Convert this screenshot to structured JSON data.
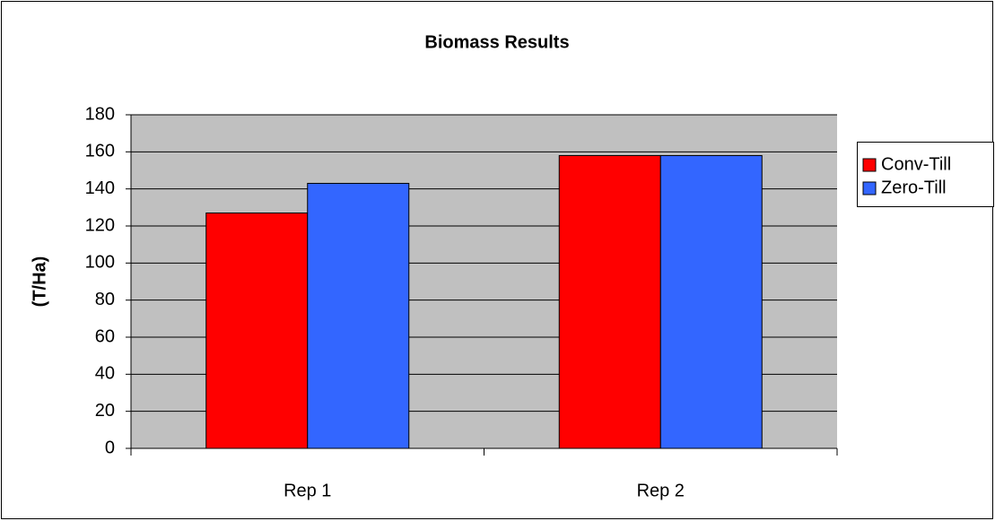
{
  "chart_data": {
    "type": "bar",
    "title": "Biomass Results",
    "y_label": "(T/Ha)",
    "categories": [
      "Rep 1",
      "Rep 2"
    ],
    "series": [
      {
        "name": "Conv-Till",
        "color": "#ff0000",
        "values": [
          127,
          158
        ]
      },
      {
        "name": "Zero-Till",
        "color": "#3366ff",
        "values": [
          143,
          158
        ]
      }
    ],
    "ylim": [
      0,
      180
    ],
    "yticks": [
      0,
      20,
      40,
      60,
      80,
      100,
      120,
      140,
      160,
      180
    ],
    "grid": true,
    "legend": "right"
  }
}
